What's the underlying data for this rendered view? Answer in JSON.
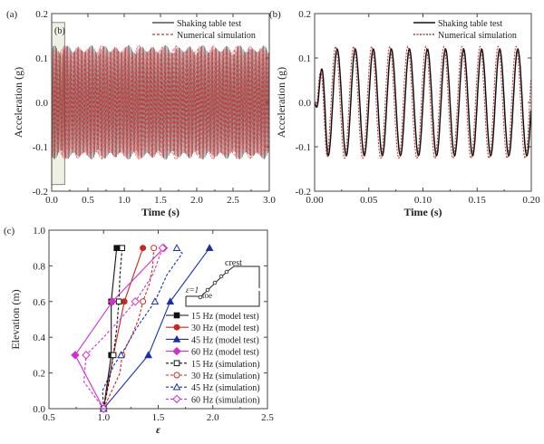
{
  "chart_data": [
    {
      "type": "line",
      "panel_label": "(a)",
      "xlabel": "Time (s)",
      "ylabel": "Acceleration (g)",
      "xlim": [
        0,
        3.0
      ],
      "ylim": [
        -0.2,
        0.2
      ],
      "xticks": [
        "0.0",
        "0.5",
        "1.0",
        "1.5",
        "2.0",
        "2.5",
        "3.0"
      ],
      "yticks": [
        "-0.2",
        "-0.1",
        "0.0",
        "0.1",
        "0.2"
      ],
      "highlight": {
        "label": "(b)",
        "x": [
          0,
          0.18
        ],
        "y": [
          -0.185,
          0.18
        ]
      },
      "signal": {
        "frequency_hz": 60,
        "amplitude_g": 0.125
      },
      "series": [
        {
          "name": "Shaking table test",
          "color": "#333333",
          "style": "solid"
        },
        {
          "name": "Numerical simulation",
          "color": "#d03030",
          "style": "dashed"
        }
      ],
      "legend": "top-right"
    },
    {
      "type": "line",
      "panel_label": "(b)",
      "xlabel": "Time (s)",
      "ylabel": "Acceleration (g)",
      "xlim": [
        0,
        0.2
      ],
      "ylim": [
        -0.2,
        0.2
      ],
      "xticks": [
        "0.00",
        "0.05",
        "0.10",
        "0.15",
        "0.20"
      ],
      "yticks": [
        "-0.2",
        "-0.1",
        "0.0",
        "0.1",
        "0.2"
      ],
      "signal": {
        "frequency_hz": 60,
        "amplitude_g": 0.12
      },
      "series": [
        {
          "name": "Shaking table test",
          "color": "#111111",
          "style": "solid",
          "phase_shift_s": 0
        },
        {
          "name": "Numerical simulation",
          "color": "#c03030",
          "style": "dotted",
          "phase_shift_s": -0.0015
        }
      ],
      "legend": "top-right"
    },
    {
      "type": "line",
      "panel_label": "(c)",
      "xlabel": "ε",
      "ylabel": "Elevation (m)",
      "xlim": [
        0.5,
        2.5
      ],
      "ylim": [
        0,
        1.0
      ],
      "xticks": [
        "0.5",
        "1.0",
        "1.5",
        "2.0",
        "2.5"
      ],
      "yticks": [
        "0.0",
        "0.2",
        "0.4",
        "0.6",
        "0.8",
        "1.0"
      ],
      "inset": {
        "crest": "crest",
        "toe": "toe",
        "eps": "ε=1"
      },
      "series": [
        {
          "name": "15 Hz (model test)",
          "color": "#111111",
          "marker": "square",
          "filled": true,
          "dash": false,
          "points": [
            [
              1.0,
              0
            ],
            [
              1.07,
              0.3
            ],
            [
              1.07,
              0.6
            ],
            [
              1.12,
              0.9
            ]
          ]
        },
        {
          "name": "30 Hz (model test)",
          "color": "#c8281e",
          "marker": "circle",
          "filled": true,
          "dash": false,
          "points": [
            [
              1.0,
              0
            ],
            [
              1.09,
              0.3
            ],
            [
              1.19,
              0.6
            ],
            [
              1.36,
              0.9
            ]
          ]
        },
        {
          "name": "45 Hz (model test)",
          "color": "#1a2fb0",
          "marker": "triangle",
          "filled": true,
          "dash": false,
          "points": [
            [
              1.0,
              0
            ],
            [
              1.41,
              0.3
            ],
            [
              1.61,
              0.6
            ],
            [
              1.97,
              0.9
            ]
          ]
        },
        {
          "name": "60 Hz (model test)",
          "color": "#d030d0",
          "marker": "diamond",
          "filled": true,
          "dash": false,
          "points": [
            [
              1.0,
              0
            ],
            [
              0.74,
              0.3
            ],
            [
              1.08,
              0.6
            ],
            [
              1.55,
              0.9
            ]
          ]
        },
        {
          "name": "15 Hz (simulation)",
          "color": "#111111",
          "marker": "square",
          "filled": false,
          "dash": true,
          "points": [
            [
              1.0,
              0
            ],
            [
              1.05,
              0.15
            ],
            [
              1.09,
              0.3
            ],
            [
              1.12,
              0.45
            ],
            [
              1.14,
              0.6
            ],
            [
              1.15,
              0.75
            ],
            [
              1.17,
              0.9
            ]
          ],
          "markers_at": [
            0.3,
            0.6,
            0.9
          ]
        },
        {
          "name": "30 Hz (simulation)",
          "color": "#c8281e",
          "marker": "circle",
          "filled": false,
          "dash": true,
          "points": [
            [
              1.0,
              0
            ],
            [
              1.15,
              0.2
            ],
            [
              1.17,
              0.3
            ],
            [
              1.25,
              0.4
            ],
            [
              1.32,
              0.5
            ],
            [
              1.36,
              0.6
            ],
            [
              1.42,
              0.7
            ],
            [
              1.45,
              0.8
            ],
            [
              1.46,
              0.9
            ]
          ],
          "markers_at": [
            0.3,
            0.6,
            0.9
          ]
        },
        {
          "name": "45 Hz (simulation)",
          "color": "#1a2fb0",
          "marker": "triangle",
          "filled": false,
          "dash": true,
          "points": [
            [
              1.0,
              0
            ],
            [
              0.99,
              0.1
            ],
            [
              1.1,
              0.25
            ],
            [
              1.16,
              0.3
            ],
            [
              1.3,
              0.45
            ],
            [
              1.47,
              0.6
            ],
            [
              1.58,
              0.75
            ],
            [
              1.72,
              0.87
            ],
            [
              1.67,
              0.9
            ]
          ],
          "markers_at": [
            0.3,
            0.6,
            0.9
          ]
        },
        {
          "name": "60 Hz (simulation)",
          "color": "#d030d0",
          "marker": "diamond",
          "filled": false,
          "dash": true,
          "points": [
            [
              1.0,
              0
            ],
            [
              0.82,
              0.15
            ],
            [
              0.84,
              0.3
            ],
            [
              1.0,
              0.4
            ],
            [
              1.15,
              0.5
            ],
            [
              1.29,
              0.6
            ],
            [
              1.45,
              0.75
            ],
            [
              1.54,
              0.9
            ]
          ],
          "markers_at": [
            0.3,
            0.6,
            0.9
          ]
        }
      ],
      "legend": "right"
    }
  ]
}
